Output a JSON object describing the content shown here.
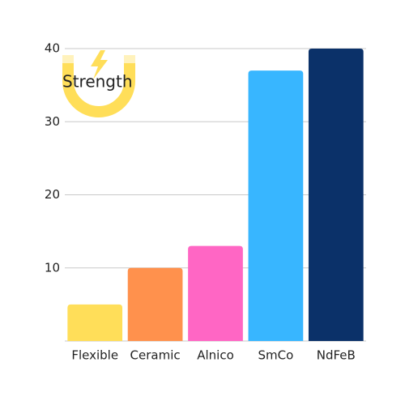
{
  "chart_data": {
    "type": "bar",
    "title": "Strength",
    "categories": [
      "Flexible",
      "Ceramic",
      "Alnico",
      "SmCo",
      "NdFeB"
    ],
    "values": [
      5,
      10,
      13,
      37,
      40
    ],
    "colors": [
      "#ffde59",
      "#ff914d",
      "#ff66c4",
      "#38b6ff",
      "#0b3169"
    ],
    "ylim": [
      0,
      40
    ],
    "yticks": [
      10,
      20,
      30,
      40
    ],
    "grid": true
  }
}
